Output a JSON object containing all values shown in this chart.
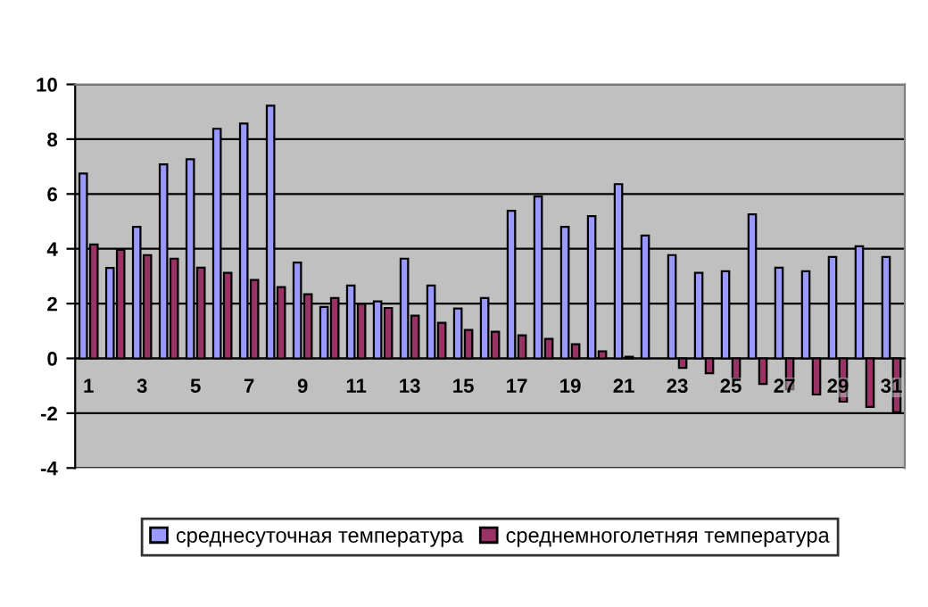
{
  "chart_data": {
    "type": "bar",
    "categories": [
      "1",
      null,
      "3",
      null,
      "5",
      null,
      "7",
      null,
      "9",
      null,
      "11",
      null,
      "13",
      null,
      "15",
      null,
      "17",
      null,
      "19",
      null,
      "21",
      null,
      "23",
      null,
      "25",
      null,
      "27",
      null,
      "29",
      null,
      "31"
    ],
    "series": [
      {
        "name": "среднесуточная температура",
        "color": "#9999ff",
        "values": [
          6.75,
          3.3,
          4.8,
          7.08,
          7.27,
          8.38,
          8.57,
          9.22,
          3.5,
          1.88,
          2.66,
          2.08,
          3.64,
          2.66,
          1.82,
          2.2,
          5.39,
          5.91,
          4.8,
          5.19,
          6.36,
          4.48,
          3.77,
          3.12,
          3.18,
          5.26,
          3.31,
          3.18,
          3.7,
          4.09,
          3.7
        ]
      },
      {
        "name": "среднемноголетняя температура",
        "color": "#993366",
        "values": [
          4.16,
          3.96,
          3.77,
          3.64,
          3.31,
          3.12,
          2.86,
          2.6,
          2.34,
          2.2,
          1.99,
          1.84,
          1.56,
          1.3,
          1.04,
          0.97,
          0.84,
          0.71,
          0.52,
          0.26,
          0.06,
          null,
          -0.35,
          -0.54,
          -0.74,
          -0.93,
          -1.13,
          -1.32,
          -1.58,
          -1.77,
          -1.97
        ]
      }
    ],
    "ylim": [
      -4,
      10
    ],
    "yticks": [
      -4,
      -2,
      0,
      2,
      4,
      6,
      8,
      10
    ],
    "grid": "y",
    "legend": "bottom"
  }
}
